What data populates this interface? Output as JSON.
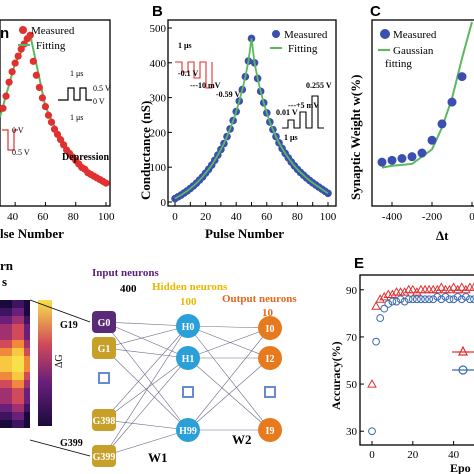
{
  "colors": {
    "measured_red": "#e03030",
    "fitting_green": "#5cb85c",
    "measured_blue": "#3a4fb0",
    "input_neuron": "#c7a02a",
    "input_neuron_g0": "#5a2a78",
    "hidden_neuron": "#2a9fd8",
    "output_neuron": "#e87a1e",
    "input_head": "#5a1f7a",
    "hidden_head": "#e8b800",
    "output_head": "#e8651e",
    "accuracy_red": "#e03030",
    "accuracy_blue": "#3a6ab0"
  },
  "panel_a": {
    "label_top_left": "n",
    "legend": {
      "measured": "Measured",
      "fitting": "Fitting"
    },
    "ylim": [
      0,
      100
    ],
    "pulse_annotations": {
      "width_top": "1 μs",
      "width_bottom": "1 μs",
      "v_high": "0.5 V",
      "v_zero": "0 V"
    },
    "inset_left": {
      "v_zero": "0 V",
      "v_neg": "0.5 V"
    },
    "depression": "Depression",
    "xlabel": "lse Number",
    "xticks": [
      "40",
      "60",
      "80",
      "100"
    ]
  },
  "panel_b": {
    "letter": "B",
    "legend": {
      "measured": "Measured",
      "fitting": "Fitting"
    },
    "ylabel": "Conductance (nS)",
    "xlabel": "Pulse Number",
    "xticks": [
      "0",
      "10",
      "20",
      "30",
      "40",
      "50",
      "60",
      "70",
      "80",
      "90",
      "100"
    ],
    "yticks": [
      "0",
      "100",
      "200",
      "300",
      "400",
      "500"
    ],
    "inset_left": {
      "width": "1 μs",
      "v1": "-0.1 V",
      "v2": "---10 mV",
      "v3": "-0.59 V"
    },
    "inset_right": {
      "width": "1 μs",
      "v1": "0.01 V",
      "v2": "---+5 mV",
      "v3": "0.255 V"
    }
  },
  "panel_c": {
    "letter": "C",
    "legend": {
      "measured": "Measured",
      "fitting_line1": "Gaussian",
      "fitting_line2": "fitting"
    },
    "ylabel": "Synaptic Weight w(%)",
    "yticks": [
      "0",
      "20",
      "40",
      "60",
      "80"
    ],
    "xticks": [
      "-400",
      "-200",
      "0"
    ],
    "xlabel": "Δt"
  },
  "panel_d": {
    "left_label_1": "rn",
    "left_label_2": "s",
    "colorbar_label": "ΔG",
    "g_labels": [
      "G19",
      "G399"
    ],
    "input_head_1": "Input neurons",
    "input_head_2": "400",
    "hidden_head_1": "Hidden neurons",
    "hidden_head_2": "100",
    "output_head_1": "Output neurons",
    "output_head_2": "10",
    "input_nodes": [
      "G0",
      "G1",
      "G398",
      "G399"
    ],
    "hidden_nodes": [
      "H0",
      "H1",
      "H99"
    ],
    "output_nodes": [
      "I0",
      "I2",
      "I9"
    ],
    "w1": "W1",
    "w2": "W2"
  },
  "panel_e": {
    "letter": "E",
    "ylabel": "Accuracy(%)",
    "xlabel": "Epo",
    "yticks": [
      "30",
      "50",
      "70",
      "90"
    ],
    "xticks": [
      "0",
      "20",
      "40"
    ]
  },
  "chart_data": [
    {
      "type": "scatter",
      "panel": "A",
      "xlabel": "Pulse Number",
      "xlim": [
        30,
        100
      ],
      "ylim": [
        0,
        100
      ],
      "series": [
        {
          "name": "Measured",
          "x": [
            32,
            34,
            36,
            38,
            40,
            42,
            44,
            46,
            48,
            50,
            52,
            54,
            56,
            58,
            60,
            62,
            64,
            66,
            68,
            70,
            72,
            74,
            76,
            78,
            80,
            82,
            84,
            86,
            88,
            90,
            92,
            94,
            96,
            98,
            100
          ],
          "values": [
            55,
            62,
            70,
            76,
            81,
            85,
            89,
            92,
            95,
            97,
            82,
            74,
            67,
            61,
            56,
            51,
            47,
            43,
            40,
            37,
            34,
            31,
            29,
            27,
            25,
            23,
            21,
            20,
            18,
            17,
            16,
            15,
            14,
            13,
            12
          ]
        },
        {
          "name": "Fitting",
          "x": [
            30,
            40,
            50,
            60,
            70,
            80,
            90,
            100
          ],
          "values": [
            50,
            81,
            97,
            56,
            37,
            25,
            17,
            12
          ]
        }
      ]
    },
    {
      "type": "scatter",
      "panel": "B",
      "xlabel": "Pulse Number",
      "ylabel": "Conductance (nS)",
      "xlim": [
        0,
        100
      ],
      "ylim": [
        0,
        500
      ],
      "series": [
        {
          "name": "Measured",
          "x": [
            0,
            2,
            4,
            6,
            8,
            10,
            12,
            14,
            16,
            18,
            20,
            22,
            24,
            26,
            28,
            30,
            32,
            34,
            36,
            38,
            40,
            42,
            44,
            46,
            48,
            50,
            52,
            54,
            56,
            58,
            60,
            62,
            64,
            66,
            68,
            70,
            72,
            74,
            76,
            78,
            80,
            82,
            84,
            86,
            88,
            90,
            92,
            94,
            96,
            98,
            100
          ],
          "values": [
            10,
            15,
            20,
            26,
            32,
            39,
            46,
            54,
            63,
            72,
            83,
            94,
            106,
            120,
            135,
            151,
            168,
            188,
            210,
            234,
            260,
            290,
            323,
            360,
            405,
            470,
            400,
            355,
            318,
            285,
            256,
            230,
            208,
            188,
            170,
            154,
            140,
            127,
            115,
            104,
            94,
            85,
            77,
            69,
            62,
            55,
            49,
            43,
            37,
            31,
            25
          ]
        },
        {
          "name": "Fitting",
          "x": [
            0,
            10,
            20,
            30,
            40,
            50,
            60,
            70,
            80,
            90,
            100
          ],
          "values": [
            10,
            39,
            83,
            151,
            260,
            470,
            256,
            154,
            94,
            55,
            25
          ]
        }
      ]
    },
    {
      "type": "scatter",
      "panel": "C",
      "ylabel": "Synaptic Weight w(%)",
      "xlabel": "Δt",
      "xlim": [
        -500,
        50
      ],
      "ylim": [
        0,
        100
      ],
      "series": [
        {
          "name": "Measured",
          "x": [
            -450,
            -400,
            -350,
            -300,
            -250,
            -200,
            -150,
            -100,
            -50
          ],
          "values": [
            23,
            24,
            25,
            26,
            28,
            35,
            44,
            56,
            70
          ]
        },
        {
          "name": "Gaussian fitting",
          "x": [
            -450,
            -400,
            -300,
            -200,
            -150,
            -100,
            -50,
            0
          ],
          "values": [
            20,
            21,
            22,
            30,
            42,
            58,
            80,
            100
          ]
        }
      ]
    },
    {
      "type": "scatter",
      "panel": "E",
      "ylabel": "Accuracy(%)",
      "xlabel": "Epo",
      "xlim": [
        0,
        50
      ],
      "ylim": [
        25,
        95
      ],
      "series": [
        {
          "name": "",
          "x": [
            0,
            2,
            4,
            6,
            8,
            10,
            12,
            14,
            16,
            18,
            20,
            22,
            24,
            26,
            28,
            30,
            32,
            34,
            36,
            38,
            40,
            42,
            44,
            46,
            48,
            50
          ],
          "values": [
            50,
            83,
            86,
            87,
            88,
            88,
            89,
            89,
            89,
            90,
            90,
            89,
            90,
            90,
            90,
            90,
            90,
            91,
            90,
            90,
            91,
            90,
            91,
            90,
            91,
            91
          ]
        },
        {
          "name": "",
          "x": [
            0,
            2,
            4,
            6,
            8,
            10,
            12,
            14,
            16,
            18,
            20,
            22,
            24,
            26,
            28,
            30,
            32,
            34,
            36,
            38,
            40,
            42,
            44,
            46,
            48,
            50
          ],
          "values": [
            30,
            68,
            78,
            82,
            84,
            85,
            85,
            86,
            85,
            86,
            86,
            86,
            86,
            86,
            86,
            86,
            87,
            86,
            87,
            86,
            86,
            87,
            86,
            87,
            86,
            86
          ]
        }
      ]
    }
  ]
}
